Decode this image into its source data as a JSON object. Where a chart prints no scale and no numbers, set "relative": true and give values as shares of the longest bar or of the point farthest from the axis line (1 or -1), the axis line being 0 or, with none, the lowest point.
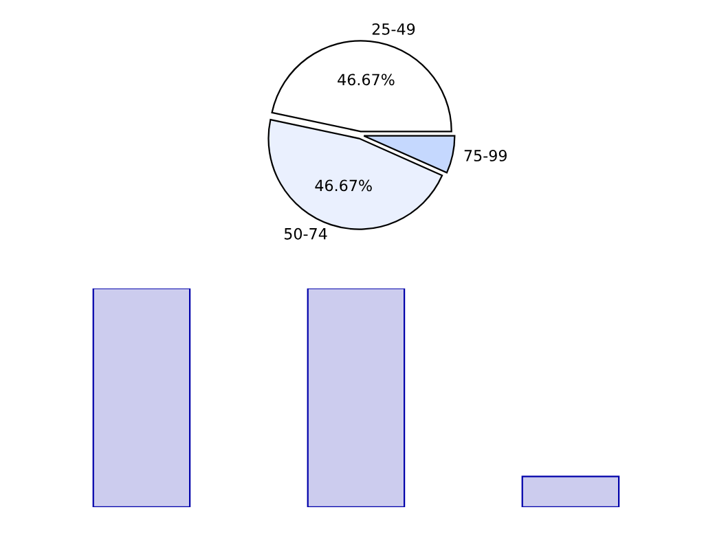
{
  "chart_data": [
    {
      "type": "pie",
      "categories": [
        "25-49",
        "50-74",
        "75-99"
      ],
      "values": [
        46.67,
        46.67,
        6.67
      ],
      "value_labels": [
        "46.67%",
        "46.67%",
        null
      ],
      "colors": [
        "#ffffff",
        "#eaf0fe",
        "#c5d8fe"
      ]
    },
    {
      "type": "bar",
      "relative": true,
      "categories": [
        null,
        null,
        null
      ],
      "values": [
        1,
        1,
        0.14
      ],
      "color": "#ccccee"
    }
  ]
}
